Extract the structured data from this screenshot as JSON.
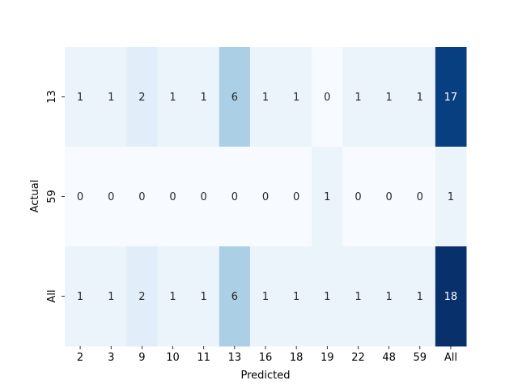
{
  "chart_data": {
    "type": "heatmap",
    "title": "",
    "xlabel": "Predicted",
    "ylabel": "Actual",
    "x_categories": [
      "2",
      "3",
      "9",
      "10",
      "11",
      "13",
      "16",
      "18",
      "19",
      "22",
      "48",
      "59",
      "All"
    ],
    "y_categories": [
      "13",
      "59",
      "All"
    ],
    "values": [
      [
        1,
        1,
        2,
        1,
        1,
        6,
        1,
        1,
        0,
        1,
        1,
        1,
        17
      ],
      [
        0,
        0,
        0,
        0,
        0,
        0,
        0,
        0,
        1,
        0,
        0,
        0,
        1
      ],
      [
        1,
        1,
        2,
        1,
        1,
        6,
        1,
        1,
        1,
        1,
        1,
        1,
        18
      ]
    ],
    "colormap": "Blues",
    "color_range": [
      0,
      18
    ],
    "colorbar": false
  }
}
